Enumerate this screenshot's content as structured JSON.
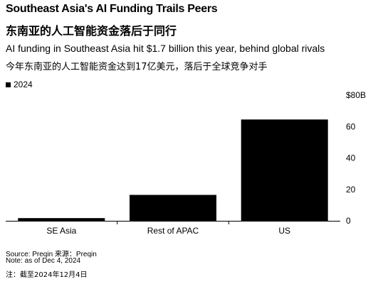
{
  "header": {
    "title": "Southeast Asia's AI Funding Trails Peers",
    "title_zh": "东南亚的人工智能资金落后于同行",
    "subtitle": "AI funding in Southeast Asia hit $1.7 billion this year, behind global rivals",
    "subtitle_zh": "今年东南亚的人工智能资金达到17亿美元，落后于全球竞争对手"
  },
  "legend": {
    "label": "2024",
    "color": "#000000"
  },
  "footer": {
    "source": "Source: Preqin 来源：Preqin",
    "note": "Note: as of Dec 4, 2024",
    "note_zh": "注：截至2024年12月4日"
  },
  "chart_data": {
    "type": "bar",
    "categories": [
      "SE Asia",
      "Rest of APAC",
      "US"
    ],
    "series": [
      {
        "name": "2024",
        "values": [
          1.7,
          16.5,
          64.5
        ],
        "color": "#000000"
      }
    ],
    "ylim": [
      0,
      80
    ],
    "yticks": [
      0,
      20,
      40,
      60
    ],
    "ytick_labels": [
      "0",
      "20",
      "40",
      "60"
    ],
    "y_top_label": "$80B",
    "ylabel": "",
    "xlabel": "",
    "axis_side": "right",
    "grid": false,
    "legend_position": "top-left"
  }
}
